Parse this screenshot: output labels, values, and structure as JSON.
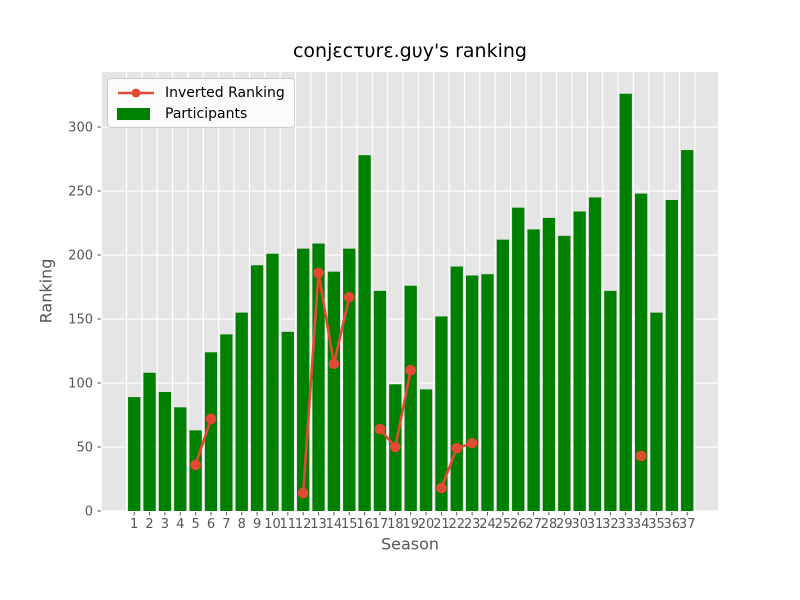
{
  "chart_data": {
    "type": "bar",
    "title": "conjεcτυrε.gυy's ranking",
    "xlabel": "Season",
    "ylabel": "Ranking",
    "background": "#E5E5E5",
    "gridline_color": "#FFFFFF",
    "tick_color": "#555555",
    "grid": true,
    "legend_position": "upper left",
    "ylim": [
      0,
      343
    ],
    "yticks": [
      0,
      50,
      100,
      150,
      200,
      250,
      300
    ],
    "categories": [
      "1",
      "2",
      "3",
      "4",
      "5",
      "6",
      "7",
      "8",
      "9",
      "10",
      "11",
      "12",
      "13",
      "14",
      "15",
      "16",
      "17",
      "18",
      "19",
      "20",
      "21",
      "22",
      "23",
      "24",
      "25",
      "26",
      "27",
      "28",
      "29",
      "30",
      "31",
      "32",
      "33",
      "34",
      "35",
      "36",
      "37"
    ],
    "series": [
      {
        "name": "Inverted Ranking",
        "type": "line",
        "color": "#E24A33",
        "values": [
          null,
          null,
          null,
          null,
          36,
          72,
          null,
          null,
          null,
          null,
          null,
          14,
          186,
          115,
          167,
          null,
          64,
          50,
          110,
          null,
          18,
          49,
          53,
          null,
          null,
          null,
          null,
          null,
          null,
          null,
          null,
          null,
          null,
          43,
          null,
          null,
          null
        ]
      },
      {
        "name": "Participants",
        "type": "bar",
        "color": "#008000",
        "values": [
          89,
          108,
          93,
          81,
          63,
          124,
          138,
          155,
          192,
          201,
          140,
          205,
          209,
          187,
          205,
          278,
          172,
          99,
          176,
          95,
          152,
          191,
          184,
          185,
          212,
          237,
          220,
          229,
          215,
          234,
          245,
          172,
          326,
          248,
          155,
          243,
          282
        ]
      }
    ]
  }
}
